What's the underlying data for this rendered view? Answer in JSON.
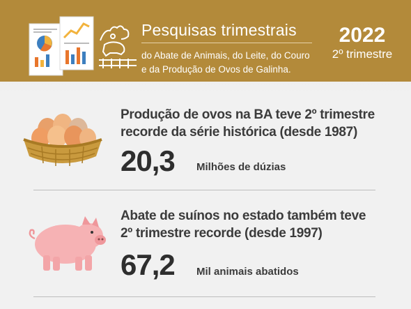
{
  "header": {
    "title": "Pesquisas trimestrais",
    "subtitle_line1": "do Abate de Animais, do Leite, do Couro",
    "subtitle_line2": "e da Produção de Ovos de Galinha.",
    "year": "2022",
    "quarter": "2º trimestre",
    "icons": [
      "report-documents-icon",
      "farm-animals-icon"
    ]
  },
  "eggs": {
    "headline_line1": "Produção de ovos na BA teve 2º trimestre",
    "headline_line2": "recorde da série histórica (desde 1987)",
    "value": "20,3",
    "unit": "Milhões de dúzias",
    "icon": "egg-basket-icon"
  },
  "pigs": {
    "headline_line1": "Abate de suínos no estado também teve",
    "headline_line2": "2º trimestre recorde (desde 1997)",
    "value": "67,2",
    "unit": "Mil animais abatidos",
    "icon": "pig-icon"
  },
  "colors": {
    "header_bg": "#b38a3a",
    "text_dark": "#3b3b3b"
  }
}
